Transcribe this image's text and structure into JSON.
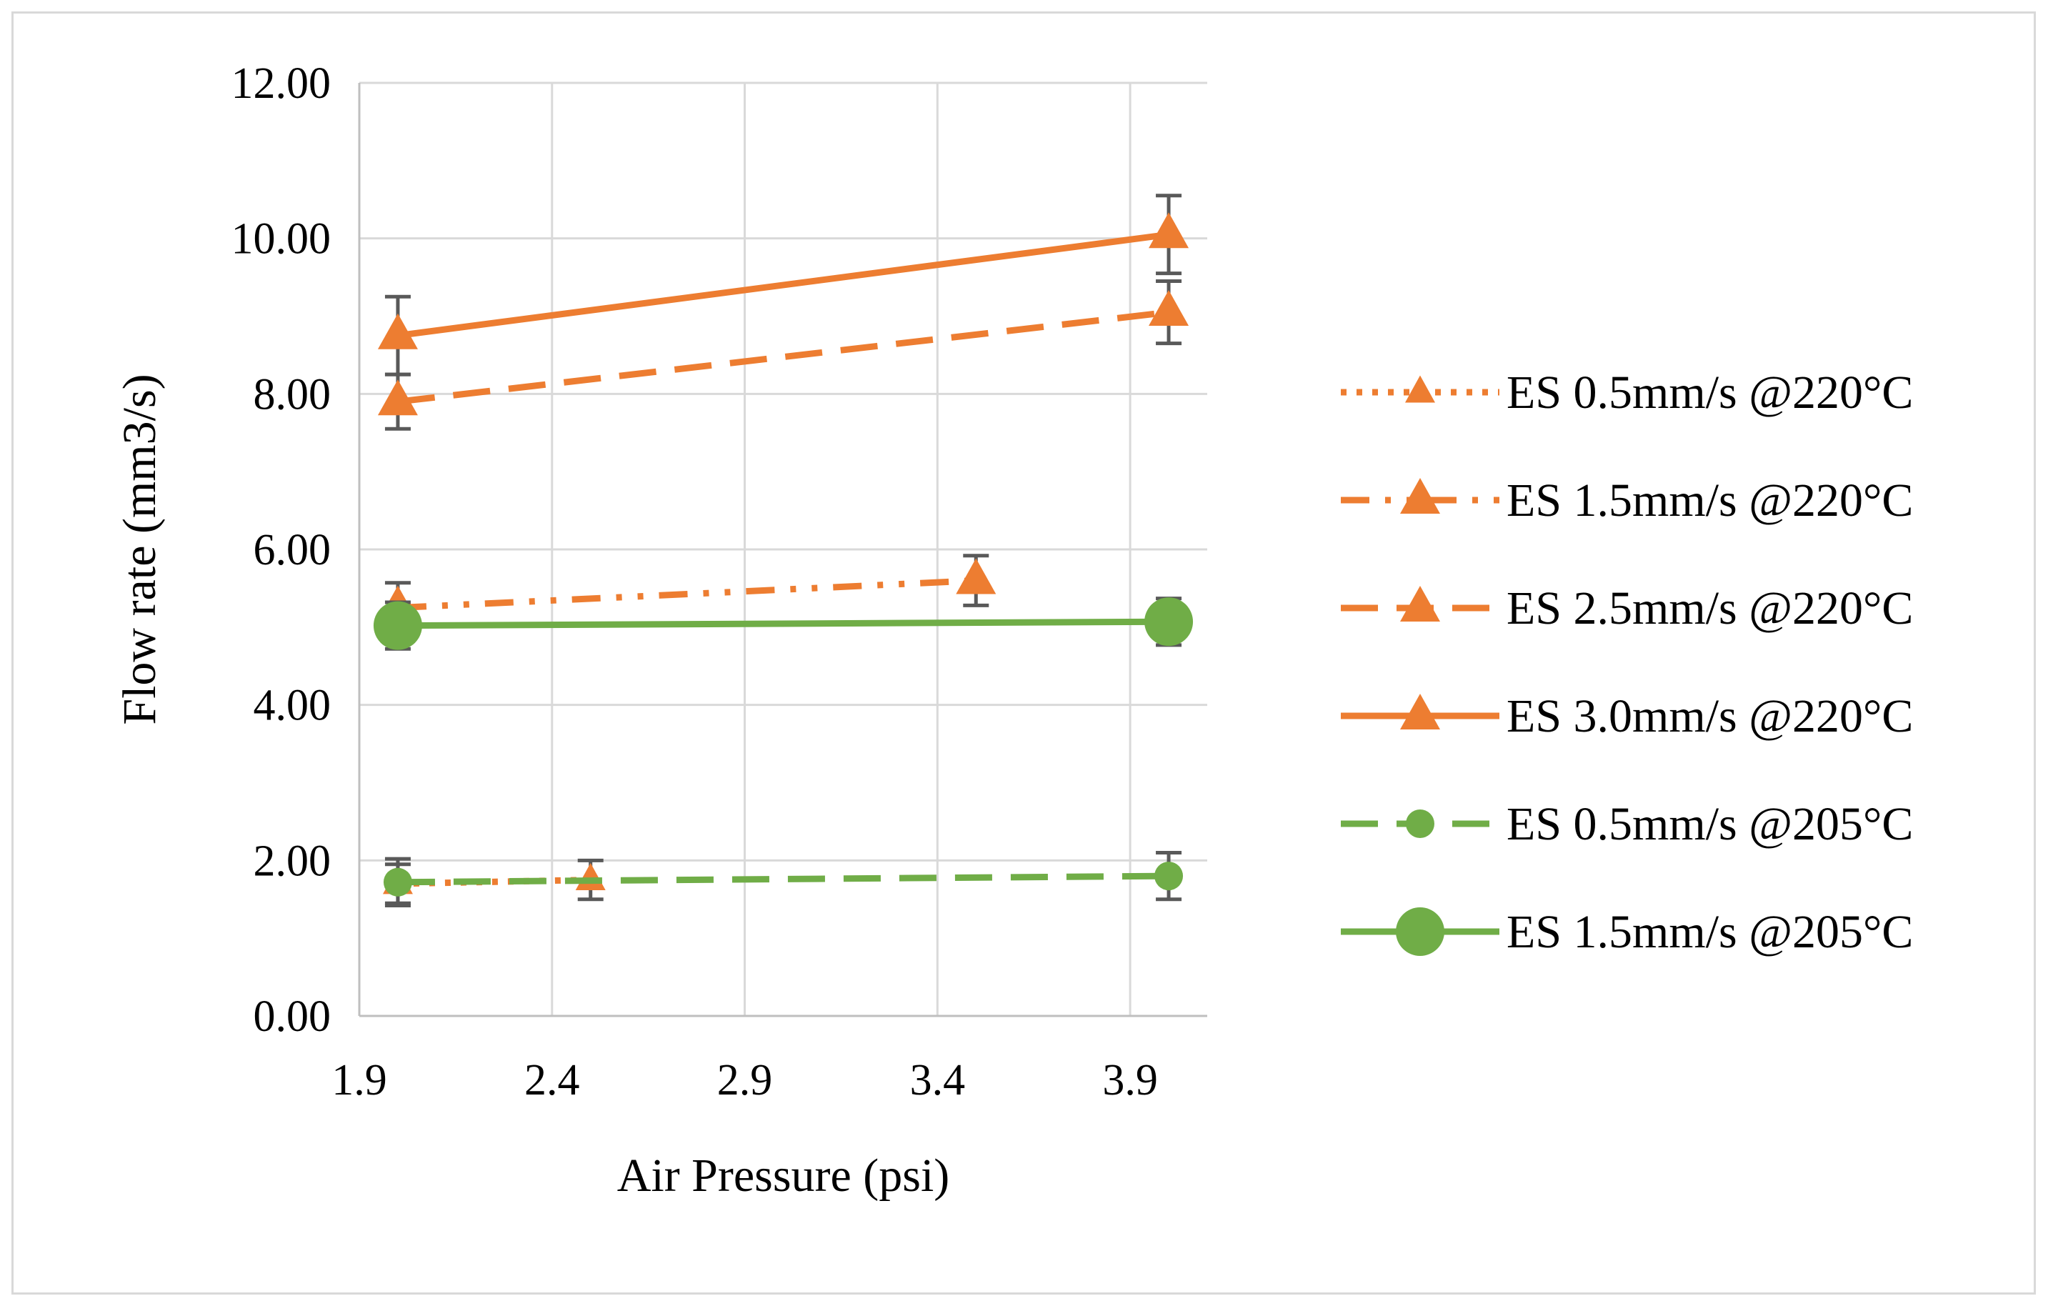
{
  "chart_data": {
    "type": "line",
    "title": "",
    "xlabel": "Air Pressure (psi)",
    "ylabel": "Flow rate (mm3/s)",
    "xlim": [
      1.9,
      4.1
    ],
    "ylim": [
      0,
      12
    ],
    "xticks": [
      1.9,
      2.4,
      2.9,
      3.4,
      3.9
    ],
    "xtick_labels": [
      "1.9",
      "2.4",
      "2.9",
      "3.4",
      "3.9"
    ],
    "yticks": [
      0,
      2,
      4,
      6,
      8,
      10,
      12
    ],
    "ytick_labels": [
      "0.00",
      "2.00",
      "4.00",
      "6.00",
      "8.00",
      "10.00",
      "12.00"
    ],
    "grid": true,
    "legend_position": "right",
    "series": [
      {
        "name": "ES 0.5mm/s @220°C",
        "color": "#ed7d31",
        "line_style": "dotted",
        "marker": "triangle",
        "marker_size": "small",
        "x": [
          2.0,
          2.5
        ],
        "y": [
          1.7,
          1.75
        ],
        "error": [
          0.25,
          0.25
        ]
      },
      {
        "name": "ES 1.5mm/s @220°C",
        "color": "#ed7d31",
        "line_style": "dash-dot-dot",
        "marker": "triangle",
        "marker_size": "large",
        "x": [
          2.0,
          3.5
        ],
        "y": [
          5.25,
          5.6
        ],
        "error": [
          0.32,
          0.32
        ]
      },
      {
        "name": "ES 2.5mm/s @220°C",
        "color": "#ed7d31",
        "line_style": "dashed",
        "marker": "triangle",
        "marker_size": "large",
        "x": [
          2.0,
          4.0
        ],
        "y": [
          7.9,
          9.05
        ],
        "error": [
          0.35,
          0.4
        ]
      },
      {
        "name": "ES 3.0mm/s @220°C",
        "color": "#ed7d31",
        "line_style": "solid",
        "marker": "triangle",
        "marker_size": "large",
        "x": [
          2.0,
          4.0
        ],
        "y": [
          8.75,
          10.05
        ],
        "error": [
          0.5,
          0.5
        ]
      },
      {
        "name": "ES 0.5mm/s @205°C",
        "color": "#70ad47",
        "line_style": "dashed",
        "marker": "circle",
        "marker_size": "small",
        "x": [
          2.0,
          4.0
        ],
        "y": [
          1.72,
          1.8
        ],
        "error": [
          0.3,
          0.3
        ]
      },
      {
        "name": "ES 1.5mm/s @205°C",
        "color": "#70ad47",
        "line_style": "solid",
        "marker": "circle",
        "marker_size": "large",
        "x": [
          2.0,
          4.0
        ],
        "y": [
          5.02,
          5.07
        ],
        "error": [
          0.3,
          0.3
        ]
      }
    ]
  }
}
